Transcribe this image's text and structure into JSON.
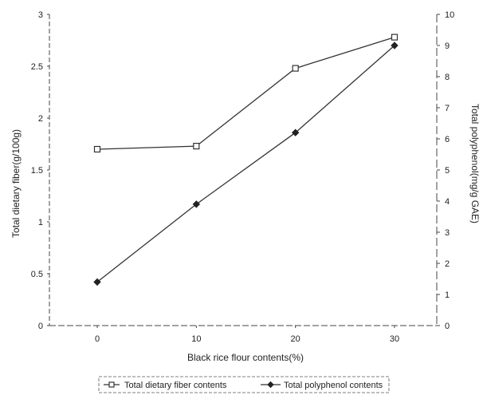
{
  "chart_data": {
    "type": "line",
    "title": "",
    "xlabel": "Black rice flour contents(%)",
    "ylabel_left": "Total dietary fiber(g/100g)",
    "ylabel_right": "Total polyphenol(mg/g GAE)",
    "categories": [
      "0",
      "10",
      "20",
      "30"
    ],
    "y_left": {
      "lim": [
        0,
        3
      ],
      "ticks": [
        "0",
        "0.5",
        "1",
        "1.5",
        "2",
        "2.5",
        "3"
      ]
    },
    "y_right": {
      "lim": [
        0,
        10
      ],
      "ticks": [
        "0",
        "1",
        "2",
        "3",
        "4",
        "5",
        "6",
        "7",
        "8",
        "9",
        "10"
      ]
    },
    "series": [
      {
        "name": "Total dietary fiber contents",
        "axis": "left",
        "marker": "square-open",
        "values": [
          1.7,
          1.73,
          2.48,
          2.78
        ]
      },
      {
        "name": "Total polyphenol contents",
        "axis": "right",
        "marker": "diamond-filled",
        "values": [
          1.4,
          3.9,
          6.2,
          9.0
        ]
      }
    ],
    "grid": false,
    "legend_position": "bottom"
  }
}
